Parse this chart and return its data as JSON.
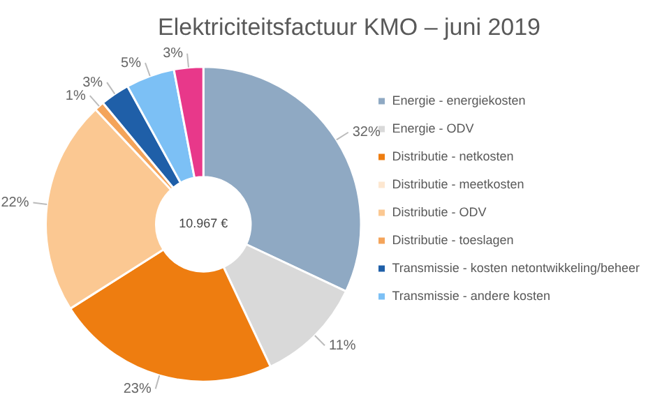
{
  "chart_data": {
    "type": "donut",
    "title": "Elektriciteitsfactuur KMO – juni 2019",
    "categories": [
      "Energie - energiekosten",
      "Energie - ODV",
      "Distributie - netkosten",
      "Distributie - meetkosten",
      "Distributie - ODV",
      "Distributie - toeslagen",
      "Transmissie - kosten netontwikkeling/beheer",
      "Transmissie - andere kosten",
      null
    ],
    "values": [
      32,
      11,
      23,
      0,
      22,
      1,
      3,
      5,
      3
    ],
    "value_labels": [
      "32%",
      "11%",
      "23%",
      null,
      "22%",
      "1%",
      "3%",
      "5%",
      "3%"
    ],
    "colors": [
      "#8fa9c3",
      "#d9d9d9",
      "#ee7d10",
      "#fde7d0",
      "#fbc892",
      "#f4a45a",
      "#1f5fa8",
      "#7cc0f5",
      "#e8388a"
    ],
    "annotations": [
      "10.967 €"
    ],
    "legend": "right"
  }
}
